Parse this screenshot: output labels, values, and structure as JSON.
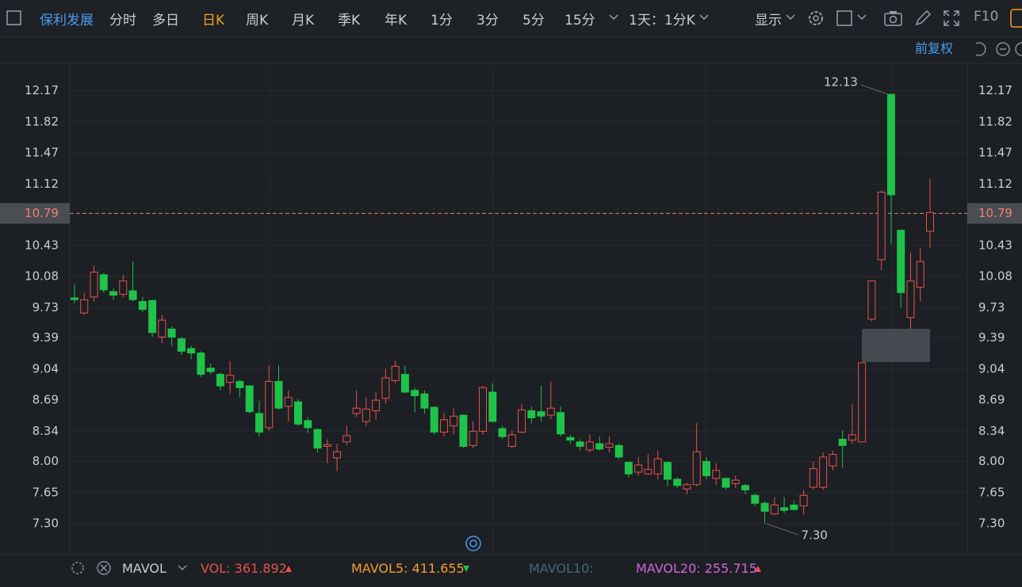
{
  "toolbar": {
    "stock": "保利发展",
    "tabs": [
      "分时",
      "多日",
      "日K",
      "周K",
      "月K",
      "季K",
      "年K",
      "1分",
      "3分",
      "5分",
      "15分"
    ],
    "period": "1天：1分K",
    "display": "显示",
    "f10": "F10"
  },
  "adjust": "前复权",
  "indicator": {
    "name": "MAVOL",
    "items": [
      {
        "label": "VOL:",
        "value": 361.892
      },
      {
        "label": "MAVOL5:",
        "value": 411.655
      },
      {
        "label": "MAVOL10:"
      },
      {
        "label": "MAVOL20:",
        "value": 255.715
      }
    ]
  },
  "chart_data": {
    "type": "candlestick",
    "open": [
      9.84,
      9.67,
      9.85,
      10.1,
      9.91,
      9.88,
      9.92,
      9.8,
      9.81,
      9.4,
      9.49,
      9.38,
      9.27,
      9.22,
      9.05,
      8.98,
      8.89,
      8.9,
      8.85,
      8.54,
      8.38,
      8.9,
      8.62,
      8.67,
      8.46,
      8.36,
      8.17,
      8.04,
      8.22,
      8.54,
      8.45,
      8.57,
      8.71,
      8.91,
      8.98,
      8.8,
      8.76,
      8.61,
      8.33,
      8.4,
      8.52,
      8.18,
      8.34,
      8.78,
      8.37,
      8.17,
      8.33,
      8.57,
      8.56,
      8.52,
      8.55,
      8.27,
      8.22,
      8.13,
      8.2,
      8.16,
      8.18,
      7.99,
      7.88,
      7.86,
      7.86,
      7.99,
      7.8,
      7.69,
      7.74,
      8.0,
      7.81,
      7.81,
      7.75,
      7.73,
      7.62,
      7.53,
      7.41,
      7.48,
      7.51,
      7.5,
      7.71,
      7.71,
      7.95,
      8.25,
      8.24,
      8.22,
      9.6,
      10.27,
      12.13,
      10.6,
      9.62,
      9.96,
      10.59
    ],
    "high": [
      9.99,
      9.9,
      10.2,
      10.12,
      9.95,
      10.1,
      10.25,
      9.85,
      9.82,
      9.65,
      9.52,
      9.4,
      9.3,
      9.24,
      9.1,
      9.0,
      9.13,
      8.92,
      8.86,
      8.68,
      9.08,
      9.08,
      8.8,
      8.7,
      8.5,
      8.37,
      8.25,
      8.2,
      8.4,
      8.8,
      8.72,
      8.78,
      9.04,
      9.13,
      9.08,
      8.83,
      8.8,
      8.62,
      8.55,
      8.6,
      8.53,
      8.45,
      8.85,
      8.88,
      8.4,
      8.35,
      8.65,
      8.62,
      8.85,
      8.9,
      8.62,
      8.3,
      8.25,
      8.3,
      8.28,
      8.28,
      8.2,
      8.0,
      8.05,
      8.08,
      8.12,
      8.0,
      7.82,
      7.76,
      8.43,
      8.05,
      7.98,
      7.82,
      7.84,
      7.75,
      7.64,
      7.55,
      7.6,
      7.6,
      7.56,
      7.68,
      8.0,
      8.1,
      8.12,
      8.35,
      8.65,
      9.11,
      10.03,
      11.05,
      12.13,
      10.61,
      10.35,
      10.4,
      11.18
    ],
    "low": [
      9.78,
      9.65,
      9.8,
      9.9,
      9.82,
      9.85,
      9.8,
      9.68,
      9.4,
      9.33,
      9.3,
      9.2,
      9.15,
      8.95,
      8.98,
      8.8,
      8.76,
      8.72,
      8.54,
      8.28,
      8.35,
      8.58,
      8.45,
      8.4,
      8.32,
      8.1,
      7.98,
      7.89,
      8.18,
      8.5,
      8.4,
      8.47,
      8.65,
      8.88,
      8.77,
      8.55,
      8.54,
      8.3,
      8.28,
      8.3,
      8.15,
      8.15,
      8.3,
      8.44,
      8.25,
      8.15,
      8.32,
      8.43,
      8.45,
      8.48,
      8.28,
      8.2,
      8.12,
      8.1,
      8.12,
      8.1,
      8.03,
      7.82,
      7.84,
      7.85,
      7.8,
      7.72,
      7.7,
      7.63,
      7.72,
      7.8,
      7.74,
      7.68,
      7.7,
      7.63,
      7.5,
      7.3,
      7.4,
      7.42,
      7.45,
      7.4,
      7.68,
      7.68,
      7.9,
      7.93,
      8.2,
      8.22,
      9.58,
      10.15,
      10.45,
      9.73,
      9.49,
      9.8,
      10.4
    ],
    "close": [
      9.82,
      9.82,
      10.13,
      9.93,
      9.87,
      10.03,
      9.82,
      9.71,
      9.45,
      9.59,
      9.4,
      9.24,
      9.22,
      8.98,
      9.01,
      8.85,
      8.97,
      8.83,
      8.56,
      8.33,
      8.9,
      8.6,
      8.72,
      8.42,
      8.38,
      8.15,
      8.19,
      8.11,
      8.29,
      8.6,
      8.59,
      8.69,
      8.94,
      9.07,
      8.78,
      8.74,
      8.6,
      8.33,
      8.47,
      8.51,
      8.17,
      8.34,
      8.83,
      8.45,
      8.28,
      8.3,
      8.58,
      8.49,
      8.51,
      8.6,
      8.31,
      8.24,
      8.17,
      8.22,
      8.14,
      8.2,
      8.05,
      7.86,
      7.96,
      7.91,
      8.03,
      7.8,
      7.73,
      7.74,
      8.11,
      7.84,
      7.9,
      7.71,
      7.79,
      7.68,
      7.53,
      7.44,
      7.51,
      7.45,
      7.46,
      7.62,
      7.92,
      8.05,
      8.08,
      8.18,
      8.3,
      9.11,
      10.03,
      11.03,
      11.0,
      9.9,
      10.03,
      10.25,
      10.8
    ],
    "up_color": "#e8524f",
    "down_color": "#1fc34a",
    "ylim": [
      6.98,
      12.46
    ],
    "yticks": [
      12.17,
      11.82,
      11.47,
      11.12,
      10.43,
      10.08,
      9.73,
      9.39,
      9.04,
      8.69,
      8.34,
      {
        "value": 8,
        "label": "8.00"
      },
      7.65,
      {
        "value": 7.3,
        "label": "7.30"
      }
    ],
    "grid": true,
    "last_price": 10.79,
    "annotations": [
      {
        "value": 12.13,
        "label": "12.13"
      },
      {
        "value": 7.3,
        "label": "7.30"
      }
    ]
  }
}
